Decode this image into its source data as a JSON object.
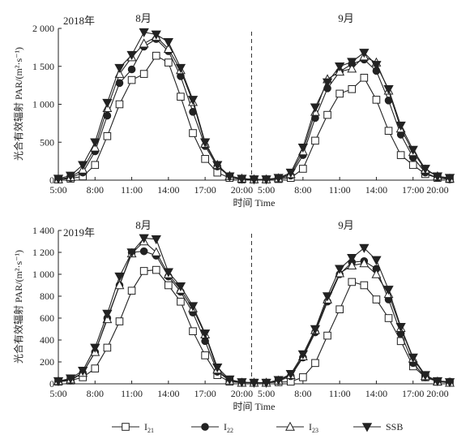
{
  "chart_data": [
    {
      "type": "line",
      "panel_label": "2018年",
      "month_labels": [
        "8月",
        "9月"
      ],
      "ylabel": "光合有效辐射 PAR/(m²·s⁻¹)",
      "xlabel": "时间 Time",
      "ylim": [
        0,
        2000
      ],
      "yticks": [
        0,
        500,
        1000,
        1500,
        2000
      ],
      "ytick_labels": [
        "0",
        "500",
        "1 000",
        "1 500",
        "2 000"
      ],
      "xtick_labels": [
        "5:00",
        "8:00",
        "11:00",
        "14:00",
        "17:00",
        "20:00",
        "5:00",
        "8:00",
        "11:00",
        "14:00",
        "17:00",
        "20:00"
      ],
      "x": [
        5,
        6,
        7,
        8,
        9,
        10,
        11,
        12,
        13,
        14,
        15,
        16,
        17,
        18,
        19,
        20,
        21,
        5,
        6,
        7,
        8,
        9,
        10,
        11,
        12,
        13,
        14,
        15,
        16,
        17,
        18,
        19,
        20
      ],
      "divider": "dashed line between months",
      "grid": false,
      "series": [
        {
          "name": "I21",
          "marker": "square-open",
          "values": [
            10,
            20,
            50,
            200,
            580,
            1000,
            1320,
            1400,
            1640,
            1550,
            1100,
            620,
            280,
            100,
            30,
            10,
            10,
            10,
            15,
            30,
            150,
            520,
            860,
            1140,
            1200,
            1350,
            1060,
            650,
            330,
            200,
            80,
            30,
            15
          ]
        },
        {
          "name": "I22",
          "marker": "circle-filled",
          "values": [
            10,
            30,
            100,
            380,
            850,
            1280,
            1460,
            1760,
            1860,
            1700,
            1370,
            900,
            450,
            180,
            50,
            15,
            10,
            10,
            20,
            60,
            330,
            820,
            1210,
            1430,
            1530,
            1590,
            1440,
            1050,
            600,
            300,
            100,
            30,
            10
          ]
        },
        {
          "name": "I23",
          "marker": "triangle-open",
          "values": [
            10,
            40,
            140,
            430,
            950,
            1400,
            1620,
            1800,
            1890,
            1730,
            1450,
            1030,
            480,
            200,
            55,
            20,
            10,
            10,
            25,
            80,
            380,
            900,
            1330,
            1430,
            1470,
            1630,
            1550,
            1180,
            680,
            370,
            140,
            50,
            20
          ]
        },
        {
          "name": "SSB",
          "marker": "triangle-down-filled",
          "values": [
            20,
            60,
            200,
            500,
            1020,
            1480,
            1650,
            1950,
            1920,
            1820,
            1480,
            1060,
            500,
            200,
            50,
            20,
            10,
            10,
            30,
            100,
            430,
            960,
            1290,
            1500,
            1560,
            1680,
            1520,
            1200,
            720,
            400,
            150,
            50,
            30
          ]
        }
      ]
    },
    {
      "type": "line",
      "panel_label": "2019年",
      "month_labels": [
        "8月",
        "9月"
      ],
      "ylabel": "光合有效辐射 PAR/(m²·s⁻¹)",
      "xlabel": "时间 Time",
      "ylim": [
        0,
        1400
      ],
      "yticks": [
        0,
        200,
        400,
        600,
        800,
        1000,
        1200,
        1400
      ],
      "ytick_labels": [
        "0",
        "200",
        "400",
        "600",
        "800",
        "1 000",
        "1 200",
        "1 400"
      ],
      "xtick_labels": [
        "5:00",
        "8:00",
        "11:00",
        "14:00",
        "17:00",
        "20:00",
        "5:00",
        "8:00",
        "11:00",
        "14:00",
        "17:00",
        "20:00"
      ],
      "x": [
        5,
        6,
        7,
        8,
        9,
        10,
        11,
        12,
        13,
        14,
        15,
        16,
        17,
        18,
        19,
        20,
        21,
        5,
        6,
        7,
        8,
        9,
        10,
        11,
        12,
        13,
        14,
        15,
        16,
        17,
        18,
        19,
        20
      ],
      "divider": "dashed line between months",
      "grid": false,
      "series": [
        {
          "name": "I21",
          "marker": "square-open",
          "values": [
            20,
            30,
            60,
            140,
            330,
            570,
            850,
            1030,
            1040,
            900,
            750,
            480,
            260,
            80,
            20,
            10,
            10,
            10,
            15,
            20,
            60,
            190,
            440,
            680,
            930,
            900,
            770,
            600,
            390,
            160,
            60,
            20,
            10
          ]
        },
        {
          "name": "I22",
          "marker": "circle-filled",
          "values": [
            20,
            30,
            100,
            290,
            600,
            900,
            1200,
            1210,
            1170,
            980,
            840,
            650,
            390,
            110,
            30,
            15,
            10,
            10,
            25,
            70,
            240,
            470,
            750,
            1000,
            1110,
            1120,
            1050,
            770,
            460,
            190,
            60,
            25,
            20
          ]
        },
        {
          "name": "I23",
          "marker": "triangle-open",
          "values": [
            25,
            40,
            100,
            290,
            590,
            900,
            1190,
            1300,
            1200,
            1000,
            860,
            690,
            450,
            130,
            30,
            10,
            10,
            10,
            30,
            80,
            250,
            490,
            770,
            1010,
            1080,
            1100,
            1000,
            820,
            510,
            230,
            70,
            20,
            10
          ]
        },
        {
          "name": "SSB",
          "marker": "triangle-down-filled",
          "values": [
            25,
            50,
            120,
            330,
            640,
            980,
            1200,
            1330,
            1320,
            1020,
            890,
            710,
            460,
            150,
            40,
            15,
            10,
            10,
            35,
            90,
            270,
            500,
            800,
            1050,
            1150,
            1240,
            1130,
            860,
            520,
            240,
            80,
            25,
            15
          ]
        }
      ]
    }
  ]
}
